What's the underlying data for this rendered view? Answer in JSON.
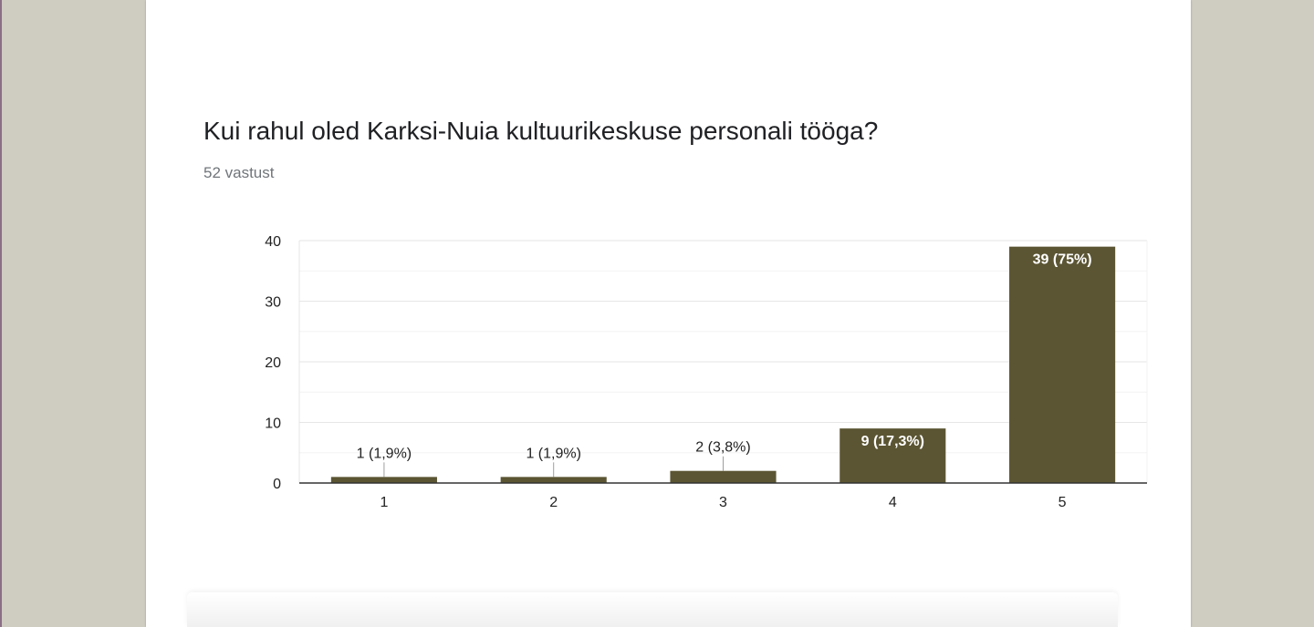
{
  "question": {
    "title": "Kui rahul oled Karksi-Nuia kultuurikeskuse personali tööga?",
    "responses": "52 vastust"
  },
  "colors": {
    "bar": "#5b5533",
    "grid_major": "#e6e6e6",
    "grid_minor": "#f3f3f3",
    "axis": "#333333",
    "tick_text": "#222222",
    "label_inside": "#ffffff",
    "label_outside": "#222222",
    "leader": "#9e9e9e"
  },
  "chart_data": {
    "type": "bar",
    "categories": [
      "1",
      "2",
      "3",
      "4",
      "5"
    ],
    "values": [
      1,
      1,
      2,
      9,
      39
    ],
    "data_labels": [
      "1 (1,9%)",
      "1 (1,9%)",
      "2 (3,8%)",
      "9 (17,3%)",
      "39 (75%)"
    ],
    "ylim": [
      0,
      40
    ],
    "yticks": [
      "0",
      "10",
      "20",
      "30",
      "40"
    ],
    "grid": true,
    "xlabel": "",
    "ylabel": ""
  }
}
